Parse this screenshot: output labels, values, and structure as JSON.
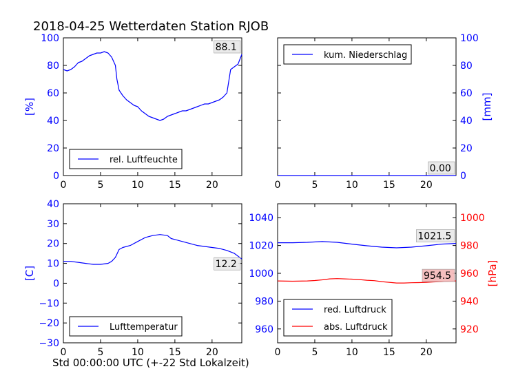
{
  "figure": {
    "title": "2018-04-25 Wetterdaten Station RJOB",
    "xlabel": "Std 00:00:00 UTC (+-22 Std Lokalzeit)"
  },
  "colors": {
    "blue": "#0000ff",
    "red": "#ff0000",
    "annot_red_bg": "#f4b8b8",
    "annot_gray_bg": "#e8e8e8"
  },
  "chart_data": [
    {
      "id": "humidity",
      "type": "line",
      "xlim": [
        0,
        24
      ],
      "ylim": [
        0,
        100
      ],
      "xticks": [
        "0",
        "5",
        "10",
        "15",
        "20"
      ],
      "yticks": [
        "0",
        "20",
        "40",
        "60",
        "80",
        "100"
      ],
      "ylabel": "[%]",
      "legend": {
        "label": "rel. Luftfeuchte",
        "position": "bottom-left"
      },
      "annotation": "88.1",
      "series": [
        {
          "name": "rel. Luftfeuchte",
          "color": "#0000ff",
          "x": [
            0,
            0.5,
            1,
            1.5,
            2,
            2.5,
            3,
            3.5,
            4,
            4.5,
            5,
            5.5,
            6,
            6.5,
            7,
            7.2,
            7.5,
            8,
            8.5,
            9,
            9.5,
            10,
            10.5,
            11,
            11.5,
            12,
            12.5,
            13,
            13.5,
            14,
            14.5,
            15,
            15.5,
            16,
            16.5,
            17,
            17.5,
            18,
            18.5,
            19,
            19.5,
            20,
            20.5,
            21,
            21.5,
            22,
            22.5,
            23,
            23.5,
            24
          ],
          "y": [
            77,
            76,
            77,
            79,
            82,
            83,
            85,
            87,
            88,
            89,
            89,
            90,
            89,
            86,
            80,
            70,
            62,
            58,
            55,
            53,
            51,
            50,
            47,
            45,
            43,
            42,
            41,
            40,
            41,
            43,
            44,
            45,
            46,
            47,
            47,
            48,
            49,
            50,
            51,
            52,
            52,
            53,
            54,
            55,
            57,
            60,
            77,
            79,
            81,
            88
          ]
        }
      ]
    },
    {
      "id": "precipitation",
      "type": "line",
      "xlim": [
        0,
        24
      ],
      "ylim": [
        0,
        100
      ],
      "xticks": [
        "0",
        "5",
        "10",
        "15",
        "20"
      ],
      "yticks": [
        "0",
        "20",
        "40",
        "60",
        "80",
        "100"
      ],
      "ylabel": "[mm]",
      "legend": {
        "label": "kum. Niederschlag",
        "position": "top-left"
      },
      "annotation": "0.00",
      "series": [
        {
          "name": "kum. Niederschlag",
          "color": "#0000ff",
          "x": [
            0,
            24
          ],
          "y": [
            0,
            0
          ]
        }
      ]
    },
    {
      "id": "temperature",
      "type": "line",
      "xlim": [
        0,
        24
      ],
      "ylim": [
        -30,
        40
      ],
      "xticks": [
        "0",
        "5",
        "10",
        "15",
        "20"
      ],
      "yticks": [
        "−30",
        "−20",
        "−10",
        "0",
        "10",
        "20",
        "30",
        "40"
      ],
      "ylabel": "[C]",
      "legend": {
        "label": "Lufttemperatur",
        "position": "bottom-left"
      },
      "annotation": "12.2",
      "series": [
        {
          "name": "Lufttemperatur",
          "color": "#0000ff",
          "x": [
            0,
            1,
            2,
            3,
            4,
            5,
            6,
            6.5,
            7,
            7.5,
            8,
            9,
            10,
            11,
            12,
            13,
            14,
            14.5,
            15,
            16,
            17,
            18,
            19,
            20,
            21,
            22,
            23,
            24
          ],
          "y": [
            11,
            11,
            10.5,
            10,
            9.5,
            9.5,
            10,
            11,
            13,
            17,
            18,
            19,
            21,
            23,
            24,
            24.5,
            24,
            22.5,
            22,
            21,
            20,
            19,
            18.5,
            18,
            17.5,
            16.5,
            15,
            12.2
          ]
        }
      ]
    },
    {
      "id": "pressure",
      "type": "line",
      "xlim": [
        0,
        24
      ],
      "ylim_left": [
        950,
        1050
      ],
      "ylim_right": [
        910,
        1010
      ],
      "xticks": [
        "0",
        "5",
        "10",
        "15",
        "20"
      ],
      "yticks_left": [
        "960",
        "980",
        "1000",
        "1020",
        "1040"
      ],
      "yticks_right": [
        "920",
        "940",
        "960",
        "980",
        "1000"
      ],
      "ylabel_right": "[hPa]",
      "legend": {
        "labels": [
          "red. Luftdruck",
          "abs. Luftdruck"
        ],
        "position": "bottom-left"
      },
      "annotations": [
        "1021.5",
        "954.5"
      ],
      "series": [
        {
          "name": "red. Luftdruck",
          "axis": "left",
          "color": "#0000ff",
          "x": [
            0,
            2,
            4,
            6,
            8,
            10,
            12,
            14,
            16,
            18,
            20,
            22,
            24
          ],
          "y": [
            1022,
            1022,
            1022.3,
            1022.8,
            1022.3,
            1021,
            1019.8,
            1018.8,
            1018.3,
            1018.8,
            1019.8,
            1021,
            1021.5
          ]
        },
        {
          "name": "abs. Luftdruck",
          "axis": "right",
          "color": "#ff0000",
          "x": [
            0,
            2,
            4,
            5,
            6,
            7,
            8,
            9,
            10,
            11,
            12,
            13,
            14,
            15,
            16,
            17,
            18,
            19,
            20,
            21,
            22,
            23,
            24
          ],
          "y": [
            954.5,
            954.3,
            954.5,
            954.8,
            955.3,
            956,
            956.2,
            956,
            955.8,
            955.5,
            955,
            954.7,
            954,
            953.5,
            953,
            953,
            953.2,
            953.3,
            953.5,
            953.8,
            954,
            954.3,
            954.5
          ]
        }
      ]
    }
  ]
}
